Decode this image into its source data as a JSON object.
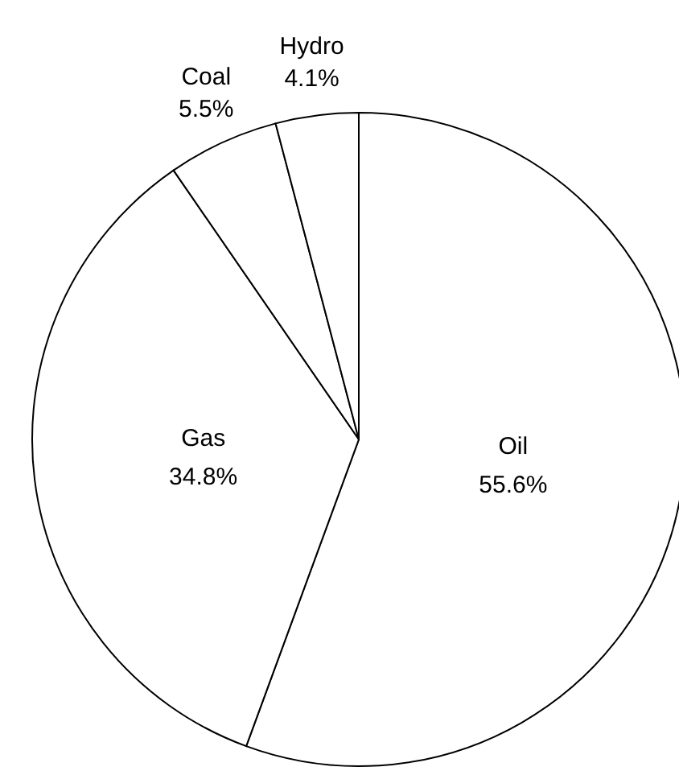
{
  "chart_data": {
    "type": "pie",
    "categories": [
      "Oil",
      "Gas",
      "Coal",
      "Hydro"
    ],
    "values": [
      55.6,
      34.8,
      5.5,
      4.1
    ],
    "value_labels": [
      "55.6%",
      "34.8%",
      "5.5%",
      "4.1%"
    ],
    "colors": [
      "#ffffff",
      "#ffffff",
      "#ffffff",
      "#ffffff"
    ]
  }
}
